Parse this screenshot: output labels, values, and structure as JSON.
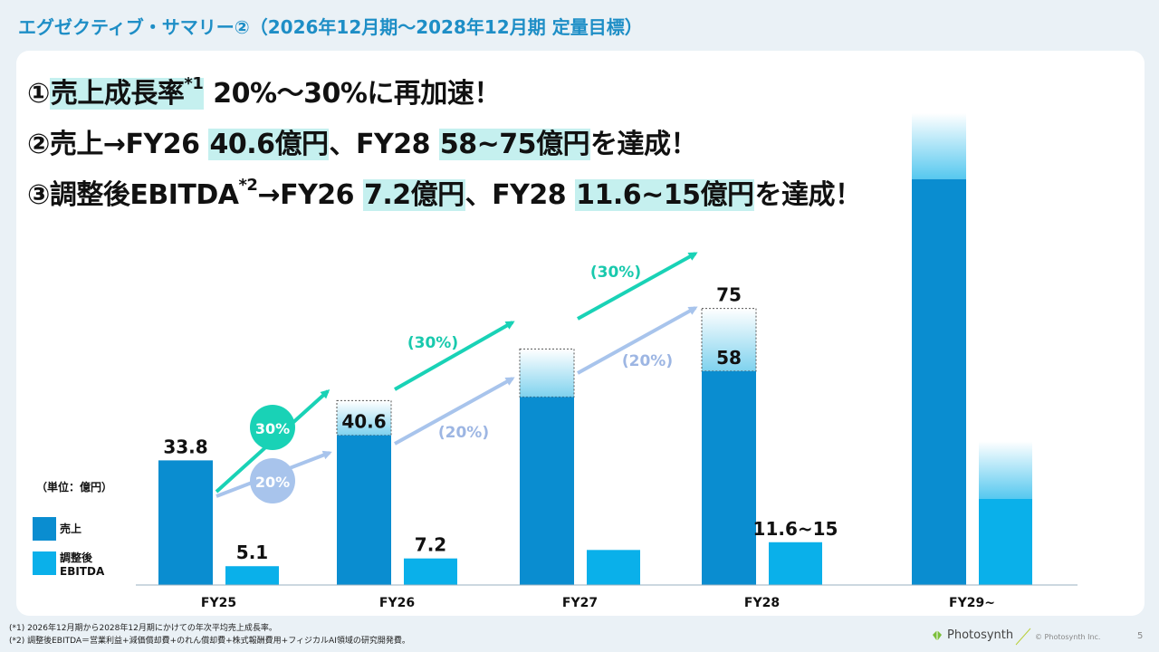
{
  "title": "エグゼクティブ・サマリー②（2026年12月期〜2028年12月期 定量目標）",
  "headlines": {
    "line1": {
      "prefix": "①",
      "highlight": "売上成長率",
      "sup": "*1",
      "value": "20%〜30%",
      "suffix": "に再加速！"
    },
    "line2": {
      "prefix": "②売上→FY26 ",
      "value1": "40.6億円",
      "mid": "、FY28 ",
      "value2": "58~75億円",
      "suffix": "を達成！"
    },
    "line3": {
      "prefix": "③調整後EBITDA",
      "sup": "*2",
      "mid1": "→FY26 ",
      "value1": "7.2億円",
      "mid2": "、FY28 ",
      "value2": "11.6~15億円",
      "suffix": "を達成！"
    }
  },
  "legend": {
    "unit": "（単位：億円）",
    "sales": "売上",
    "ebitda_line1": "調整後",
    "ebitda_line2": "EBITDA"
  },
  "chart_data": {
    "type": "bar",
    "categories": [
      "FY25",
      "FY26",
      "FY27",
      "FY28",
      "FY29~"
    ],
    "series": [
      {
        "name": "売上",
        "values": [
          33.8,
          40.6,
          51,
          58,
          128
        ],
        "upper": [
          null,
          50,
          64,
          75,
          null
        ]
      },
      {
        "name": "調整後EBITDA",
        "values": [
          5.1,
          7.2,
          9.5,
          11.6,
          39
        ],
        "upper": [
          null,
          null,
          null,
          15,
          null
        ]
      }
    ],
    "data_labels": [
      "33.8",
      "5.1",
      "40.6",
      "7.2",
      "58",
      "75",
      "11.6~15"
    ],
    "growth_labels": {
      "high_first": "30%",
      "low_first": "20%",
      "high_arrows": [
        "(30%)",
        "(30%)"
      ],
      "low_arrows": [
        "(20%)",
        "(20%)"
      ]
    },
    "colors": {
      "sales": "#0a8dd0",
      "ebitda": "#0ab0ea",
      "high": "#19d2b6",
      "low": "#a8c4ec"
    },
    "ylim": [
      0,
      140
    ]
  },
  "footnotes": [
    "(*1) 2026年12月期から2028年12月期にかけての年次平均売上成長率。",
    "(*2) 調整後EBITDA＝営業利益+減価償却費+のれん償却費+株式報酬費用+フィジカルAI領域の研究開発費。"
  ],
  "footer": {
    "logo": "Photosynth",
    "copyright": "© Photosynth Inc.",
    "page": "5"
  }
}
